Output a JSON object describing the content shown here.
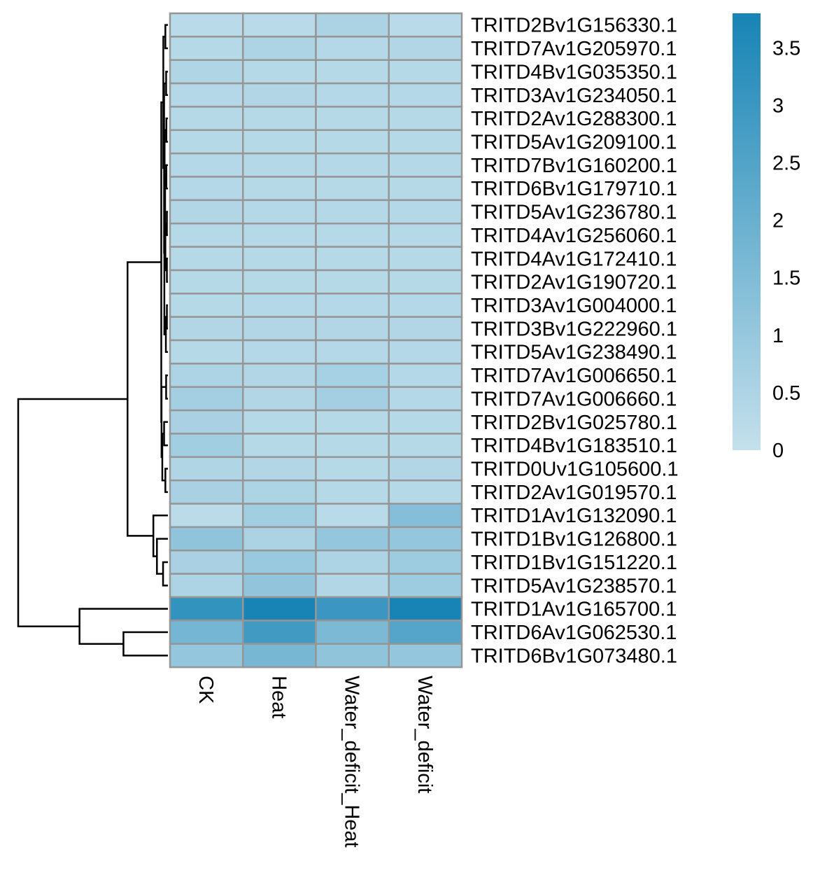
{
  "chart_data": {
    "type": "heatmap",
    "columns": [
      "CK",
      "Heat",
      "Water_deficit_Heat",
      "Water_deficit"
    ],
    "rows": [
      "TRITD2Bv1G156330.1",
      "TRITD7Av1G205970.1",
      "TRITD4Bv1G035350.1",
      "TRITD3Av1G234050.1",
      "TRITD2Av1G288300.1",
      "TRITD5Av1G209100.1",
      "TRITD7Bv1G160200.1",
      "TRITD6Bv1G179710.1",
      "TRITD5Av1G236780.1",
      "TRITD4Av1G256060.1",
      "TRITD4Av1G172410.1",
      "TRITD2Av1G190720.1",
      "TRITD3Av1G004000.1",
      "TRITD3Bv1G222960.1",
      "TRITD5Av1G238490.1",
      "TRITD7Av1G006650.1",
      "TRITD7Av1G006660.1",
      "TRITD2Bv1G025780.1",
      "TRITD4Bv1G183510.1",
      "TRITD0Uv1G105600.1",
      "TRITD2Av1G019570.1",
      "TRITD1Av1G132090.1",
      "TRITD1Bv1G126800.1",
      "TRITD1Bv1G151220.1",
      "TRITD5Av1G238570.1",
      "TRITD1Av1G165700.1",
      "TRITD6Av1G062530.1",
      "TRITD6Bv1G073480.1"
    ],
    "values": [
      [
        0.25,
        0.25,
        0.55,
        0.25
      ],
      [
        0.3,
        0.5,
        0.35,
        0.4
      ],
      [
        0.45,
        0.3,
        0.3,
        0.3
      ],
      [
        0.35,
        0.4,
        0.35,
        0.35
      ],
      [
        0.3,
        0.3,
        0.3,
        0.3
      ],
      [
        0.3,
        0.3,
        0.3,
        0.3
      ],
      [
        0.35,
        0.35,
        0.35,
        0.35
      ],
      [
        0.35,
        0.3,
        0.3,
        0.3
      ],
      [
        0.4,
        0.35,
        0.35,
        0.35
      ],
      [
        0.3,
        0.3,
        0.3,
        0.3
      ],
      [
        0.3,
        0.3,
        0.3,
        0.3
      ],
      [
        0.3,
        0.3,
        0.3,
        0.3
      ],
      [
        0.3,
        0.35,
        0.35,
        0.35
      ],
      [
        0.4,
        0.4,
        0.4,
        0.4
      ],
      [
        0.3,
        0.35,
        0.35,
        0.35
      ],
      [
        0.5,
        0.4,
        0.65,
        0.35
      ],
      [
        0.7,
        0.4,
        0.7,
        0.35
      ],
      [
        0.6,
        0.3,
        0.3,
        0.3
      ],
      [
        0.75,
        0.3,
        0.3,
        0.3
      ],
      [
        0.45,
        0.4,
        0.3,
        0.4
      ],
      [
        0.6,
        0.5,
        0.3,
        0.3
      ],
      [
        0.2,
        0.75,
        0.25,
        1.4
      ],
      [
        1.15,
        0.55,
        1.05,
        1.05
      ],
      [
        0.6,
        0.95,
        0.5,
        0.85
      ],
      [
        0.5,
        1.1,
        0.4,
        0.85
      ],
      [
        3.2,
        3.8,
        3.0,
        3.85
      ],
      [
        1.75,
        2.9,
        1.6,
        2.45
      ],
      [
        1.05,
        1.7,
        1.15,
        1.05
      ]
    ],
    "legend": {
      "ticks": [
        0,
        0.5,
        1,
        1.5,
        2,
        2.5,
        3,
        3.5
      ],
      "tick_labels": [
        "0",
        "0.5",
        "1",
        "1.5",
        "2",
        "2.5",
        "3",
        "3.5"
      ],
      "range": [
        0,
        3.8
      ],
      "low_color": "#c4e0ec",
      "high_color": "#1784b5",
      "position": "top-right"
    },
    "dendrogram": {
      "position": "left",
      "merges": [
        [
          -1,
          -2,
          0.5
        ],
        [
          -3,
          -4,
          0.3
        ],
        [
          -5,
          -6,
          0.3
        ],
        [
          -7,
          -8,
          0.3
        ],
        [
          -9,
          -10,
          0.2
        ],
        [
          -11,
          -12,
          0.2
        ],
        [
          -13,
          -14,
          0.2
        ],
        [
          -15,
          7,
          0.4
        ],
        [
          5,
          6,
          0.5
        ],
        [
          4,
          9,
          0.55
        ],
        [
          3,
          10,
          0.65
        ],
        [
          8,
          11,
          0.7
        ],
        [
          2,
          12,
          0.75
        ],
        [
          1,
          13,
          0.9
        ],
        [
          -16,
          -17,
          0.35
        ],
        [
          -18,
          -19,
          0.75
        ],
        [
          -20,
          -21,
          0.5
        ],
        [
          16,
          17,
          1.1
        ],
        [
          15,
          18,
          1.25
        ],
        [
          14,
          19,
          1.25
        ],
        [
          20,
          19.5,
          0
        ]
      ],
      "upper": [
        [
          -24,
          -25,
          0.95
        ],
        [
          -23,
          22,
          2.15
        ],
        [
          -22,
          23,
          2.85
        ],
        [
          21,
          24,
          7.9
        ],
        [
          -27,
          -28,
          8.7
        ],
        [
          -26,
          26,
          17.3
        ],
        [
          25,
          27,
          29.3
        ]
      ]
    }
  }
}
